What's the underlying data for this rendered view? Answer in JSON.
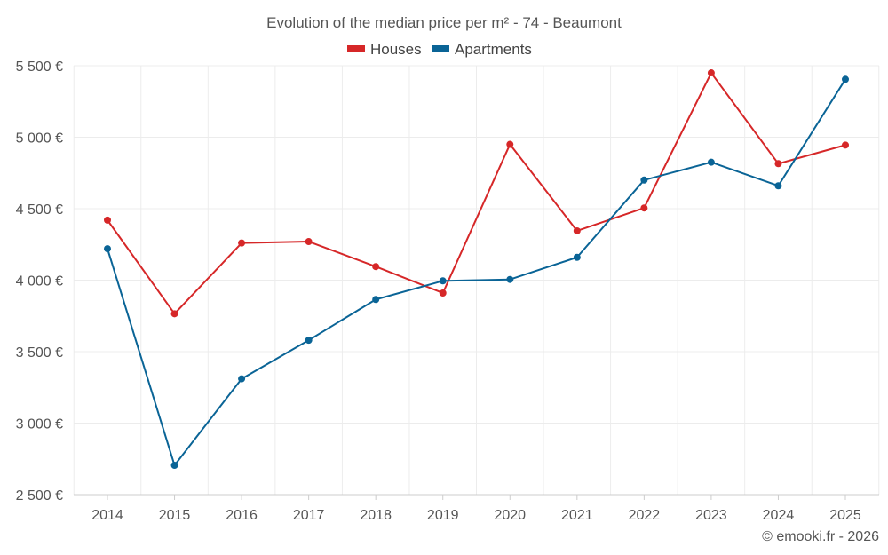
{
  "chart_data": {
    "type": "line",
    "title": "Evolution of the median price per m² - 74 - Beaumont",
    "categories": [
      "2014",
      "2015",
      "2016",
      "2017",
      "2018",
      "2019",
      "2020",
      "2021",
      "2022",
      "2023",
      "2024",
      "2025"
    ],
    "series": [
      {
        "name": "Houses",
        "color": "#d62728",
        "values": [
          4420,
          3765,
          4260,
          4270,
          4095,
          3910,
          4950,
          4345,
          4505,
          5450,
          4815,
          4945
        ]
      },
      {
        "name": "Apartments",
        "color": "#0a6496",
        "values": [
          4220,
          2705,
          3310,
          3580,
          3865,
          3995,
          4005,
          4160,
          4700,
          4825,
          4660,
          5405
        ]
      }
    ],
    "y_ticks": [
      2500,
      3000,
      3500,
      4000,
      4500,
      5000,
      5500
    ],
    "y_tick_labels": [
      "2 500 €",
      "3 000 €",
      "3 500 €",
      "4 000 €",
      "4 500 €",
      "5 000 €",
      "5 500 €"
    ],
    "ylim": [
      2500,
      5500
    ],
    "xlabel": "",
    "ylabel": "",
    "grid": true,
    "legend_position": "top-center"
  },
  "credit": "© emooki.fr - 2026"
}
